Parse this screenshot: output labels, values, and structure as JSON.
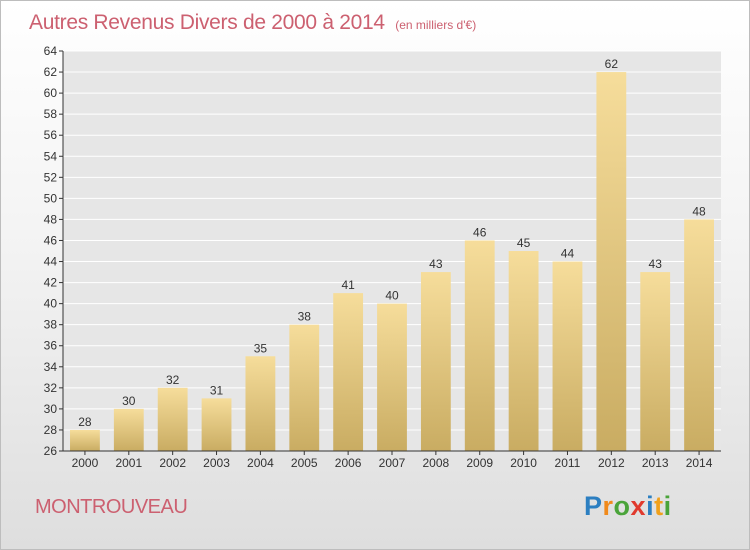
{
  "title": "Autres Revenus Divers de 2000 à 2014",
  "subtitle": "(en milliers d'€)",
  "commune": "MONTROUVEAU",
  "logo": {
    "letters": [
      "P",
      "r",
      "o",
      "x",
      "i",
      "t",
      "i"
    ],
    "colors": [
      "#2c7fc1",
      "#f08a1c",
      "#4aa43a",
      "#e03a2e",
      "#2c7fc1",
      "#f0a11c",
      "#4aa43a"
    ]
  },
  "colors": {
    "bar_top": "#f6dd9b",
    "bar_bottom": "#c9ac62",
    "title": "#cc6070",
    "axis": "#333333",
    "grid": "#ffffff"
  },
  "chart_data": {
    "type": "bar",
    "categories": [
      "2000",
      "2001",
      "2002",
      "2003",
      "2004",
      "2005",
      "2006",
      "2007",
      "2008",
      "2009",
      "2010",
      "2011",
      "2012",
      "2013",
      "2014"
    ],
    "values": [
      28,
      30,
      32,
      31,
      35,
      38,
      41,
      40,
      43,
      46,
      45,
      44,
      62,
      43,
      48
    ],
    "ylim": [
      26,
      64
    ],
    "yticks": [
      26,
      28,
      30,
      32,
      34,
      36,
      38,
      40,
      42,
      44,
      46,
      48,
      50,
      52,
      54,
      56,
      58,
      60,
      62,
      64
    ],
    "grid": true,
    "data_labels": true
  }
}
